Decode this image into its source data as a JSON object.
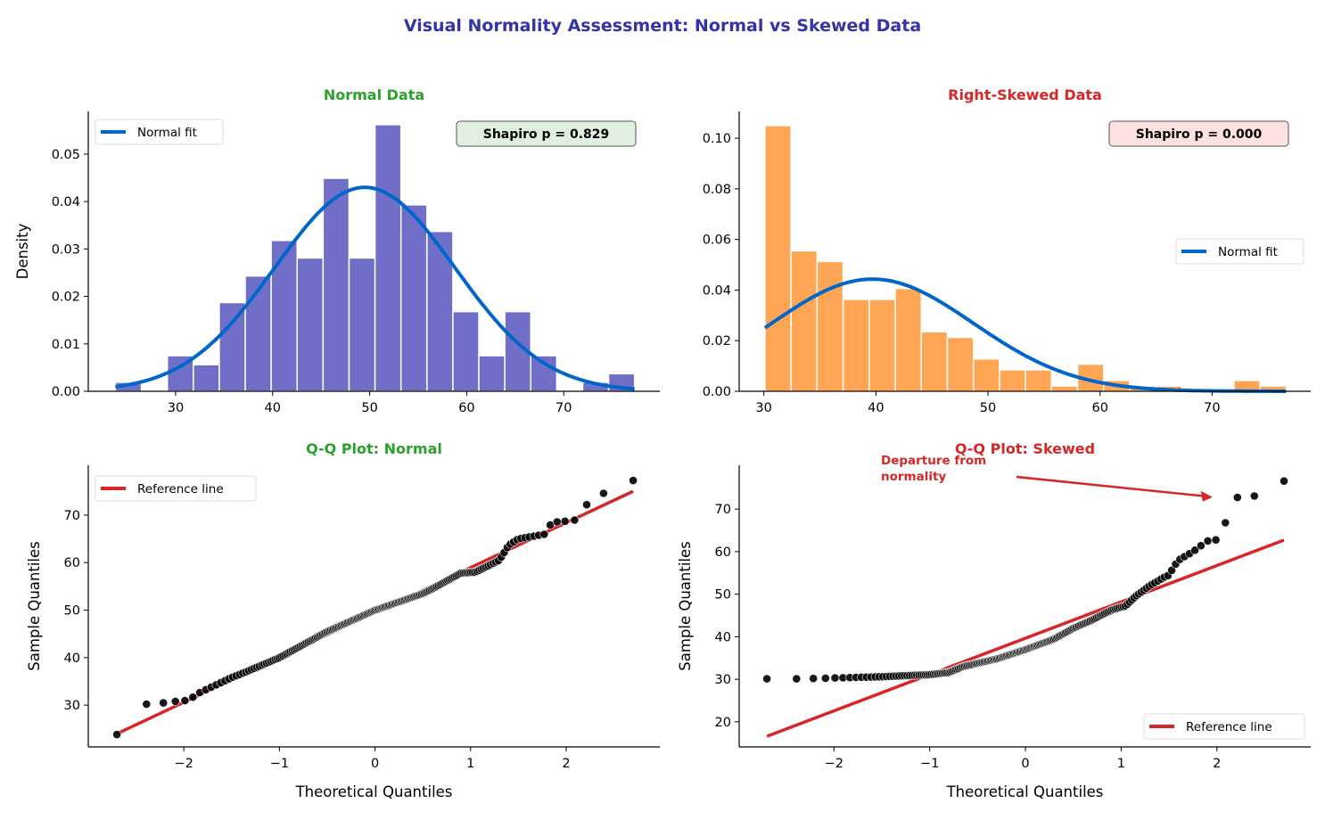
{
  "title": "Visual Normality Assessment: Normal vs Skewed Data",
  "colors": {
    "title": "#3333aa",
    "normal_title": "#2ca02c",
    "skewed_title": "#d62728",
    "normal_hist": "#6f6fc8",
    "skewed_hist": "#ffa554",
    "fit_line": "#0066cc",
    "reference_line": "#d62728",
    "normal_points": "#4a4ab8",
    "skewed_points": "#ff9a3c",
    "normal_box": "#dff0e0",
    "skewed_box": "#fde0e0"
  },
  "chart_data": [
    {
      "id": "normal-hist",
      "type": "bar",
      "title": "Normal Data",
      "xlabel": "",
      "ylabel": "Density",
      "xlim": [
        21.0,
        79.9
      ],
      "ylim": [
        0,
        0.059
      ],
      "xticks": [
        30,
        40,
        50,
        60,
        70
      ],
      "yticks": [
        "0.00",
        "0.01",
        "0.02",
        "0.03",
        "0.04",
        "0.05"
      ],
      "bin_start": 23.8,
      "bin_width": 2.675,
      "values": [
        0.0019,
        0,
        0.0075,
        0.0056,
        0.0187,
        0.0243,
        0.0318,
        0.0281,
        0.0449,
        0.0281,
        0.0562,
        0.0393,
        0.0337,
        0.0168,
        0.0075,
        0.0168,
        0.0075,
        0,
        0.0019,
        0.0037
      ],
      "fit": {
        "label": "Normal fit",
        "mean": 49.5,
        "sd": 9.28,
        "range": [
          23.8,
          77.3
        ]
      },
      "legend": "top-left",
      "annotation": "Shapiro p = 0.829"
    },
    {
      "id": "skewed-hist",
      "type": "bar",
      "title": "Right-Skewed Data",
      "xlabel": "",
      "ylabel": "",
      "xlim": [
        27.8,
        78.8
      ],
      "ylim": [
        0,
        0.1106
      ],
      "xticks": [
        30,
        40,
        50,
        60,
        70
      ],
      "yticks": [
        "0.00",
        "0.02",
        "0.04",
        "0.06",
        "0.08",
        "0.10"
      ],
      "bin_start": 30.1,
      "bin_width": 2.325,
      "values": [
        0.105,
        0.0555,
        0.0513,
        0.0363,
        0.0363,
        0.0406,
        0.0235,
        0.0213,
        0.0128,
        0.0085,
        0.0085,
        0.0021,
        0.0107,
        0.0043,
        0.0021,
        0.0021,
        0,
        0,
        0.0043,
        0.0021
      ],
      "fit": {
        "label": "Normal fit",
        "mean": 39.7,
        "sd": 9.0,
        "range": [
          30.1,
          76.6
        ]
      },
      "legend": "center-right",
      "annotation": "Shapiro p = 0.000"
    },
    {
      "id": "normal-qq",
      "type": "scatter",
      "title": "Q-Q Plot: Normal",
      "xlabel": "Theoretical Quantiles",
      "ylabel": "Sample Quantiles",
      "xlim": [
        -3.0,
        2.98
      ],
      "ylim": [
        21.2,
        80.5
      ],
      "xticks": [
        -2,
        -1,
        0,
        1,
        2
      ],
      "yticks": [
        30,
        40,
        50,
        60,
        70
      ],
      "n": 200,
      "quantile_curve": [
        [
          -2.7,
          23.8
        ],
        [
          -2.4,
          30.2
        ],
        [
          -2.2,
          30.5
        ],
        [
          -2.05,
          30.9
        ],
        [
          -1.95,
          31.0
        ],
        [
          -1.85,
          32.5
        ],
        [
          -1.5,
          35.8
        ],
        [
          -1.35,
          37.0
        ],
        [
          -1.0,
          40.0
        ],
        [
          -0.5,
          45.5
        ],
        [
          0,
          50.0
        ],
        [
          0.5,
          53.5
        ],
        [
          0.6,
          54.5
        ],
        [
          0.9,
          57.8
        ],
        [
          1.05,
          58.0
        ],
        [
          1.3,
          60.5
        ],
        [
          1.4,
          63.7
        ],
        [
          1.5,
          65.0
        ],
        [
          1.78,
          66.0
        ],
        [
          1.85,
          68.5
        ],
        [
          2.05,
          68.8
        ],
        [
          2.1,
          69.0
        ],
        [
          2.2,
          72.0
        ],
        [
          2.4,
          74.7
        ],
        [
          2.7,
          77.3
        ]
      ],
      "reference": {
        "label": "Reference line",
        "intercept": 49.5,
        "slope": 9.45
      },
      "legend": "top-left"
    },
    {
      "id": "skewed-qq",
      "type": "scatter",
      "title": "Q-Q Plot: Skewed",
      "xlabel": "Theoretical Quantiles",
      "ylabel": "Sample Quantiles",
      "xlim": [
        -2.99,
        2.98
      ],
      "ylim": [
        14.1,
        80.3
      ],
      "xticks": [
        -2,
        -1,
        0,
        1,
        2
      ],
      "yticks": [
        20,
        30,
        40,
        50,
        60,
        70
      ],
      "n": 200,
      "quantile_curve": [
        [
          -2.7,
          30.1
        ],
        [
          -2.4,
          30.1
        ],
        [
          -2.2,
          30.2
        ],
        [
          -2.0,
          30.3
        ],
        [
          -1.5,
          30.6
        ],
        [
          -1.0,
          31.1
        ],
        [
          -0.8,
          31.6
        ],
        [
          -0.65,
          33.0
        ],
        [
          -0.3,
          34.8
        ],
        [
          0,
          37.0
        ],
        [
          0.3,
          39.5
        ],
        [
          0.5,
          42.0
        ],
        [
          0.7,
          44.0
        ],
        [
          0.9,
          46.3
        ],
        [
          1.05,
          47.3
        ],
        [
          1.15,
          49.5
        ],
        [
          1.3,
          52.0
        ],
        [
          1.45,
          54.0
        ],
        [
          1.5,
          54.5
        ],
        [
          1.55,
          56.5
        ],
        [
          1.6,
          58.0
        ],
        [
          1.75,
          60.0
        ],
        [
          1.9,
          62.5
        ],
        [
          2.0,
          62.8
        ],
        [
          2.1,
          67.3
        ],
        [
          2.2,
          72.7
        ],
        [
          2.4,
          73.1
        ],
        [
          2.7,
          76.6
        ]
      ],
      "reference": {
        "label": "Reference line",
        "intercept": 39.65,
        "slope": 8.54
      },
      "legend": "bottom-right",
      "annotation": {
        "text": [
          "Departure from",
          "normality"
        ],
        "target": [
          2.0,
          72.8
        ]
      }
    }
  ]
}
